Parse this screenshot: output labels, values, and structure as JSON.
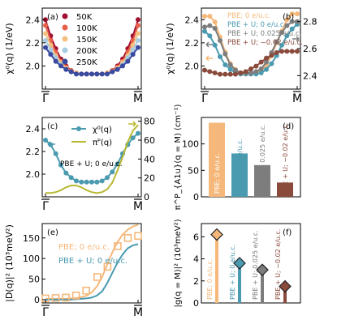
{
  "figure": {
    "common": {
      "x_ticks": [
        "Γ",
        "M"
      ]
    }
  },
  "chart_data": [
    {
      "panel": "(a)",
      "type": "line",
      "ylabel": "χ⁰(q) (1/eV)",
      "ylim": [
        1.8,
        2.5
      ],
      "yticks": [
        "2.0",
        "2.2",
        "2.4"
      ],
      "legend_position": "upper-left",
      "series": [
        {
          "name": "50K",
          "color": "#a01030",
          "values": [
            2.4,
            2.26,
            2.15,
            2.06,
            2.0,
            1.96,
            1.94,
            1.93,
            1.93,
            1.93,
            1.93,
            1.93,
            1.94,
            1.96,
            2.0,
            2.06,
            2.15,
            2.26,
            2.4
          ]
        },
        {
          "name": "100K",
          "color": "#e8604a",
          "values": [
            2.35,
            2.22,
            2.12,
            2.04,
            1.99,
            1.96,
            1.94,
            1.93,
            1.93,
            1.93,
            1.93,
            1.93,
            1.94,
            1.96,
            1.99,
            2.04,
            2.12,
            2.22,
            2.35
          ]
        },
        {
          "name": "150K",
          "color": "#f3c07f",
          "values": [
            2.28,
            2.18,
            2.09,
            2.03,
            1.98,
            1.95,
            1.94,
            1.93,
            1.93,
            1.93,
            1.93,
            1.93,
            1.94,
            1.95,
            1.98,
            2.03,
            2.09,
            2.18,
            2.28
          ]
        },
        {
          "name": "200K",
          "color": "#a8cce2",
          "values": [
            2.22,
            2.14,
            2.07,
            2.01,
            1.97,
            1.95,
            1.93,
            1.93,
            1.93,
            1.93,
            1.93,
            1.93,
            1.93,
            1.95,
            1.97,
            2.01,
            2.07,
            2.14,
            2.22
          ]
        },
        {
          "name": "250K",
          "color": "#3a4aa0",
          "values": [
            2.16,
            2.1,
            2.04,
            2.0,
            1.97,
            1.95,
            1.93,
            1.93,
            1.93,
            1.93,
            1.93,
            1.93,
            1.93,
            1.95,
            1.97,
            2.0,
            2.04,
            2.1,
            2.16
          ]
        }
      ]
    },
    {
      "panel": "(b)",
      "type": "line",
      "ylabel": "χ⁰(q) (1/eV)",
      "ylim_left": [
        1.8,
        2.5
      ],
      "yticks_left": [
        "2.0",
        "2.2",
        "2.4"
      ],
      "ylim_right": [
        2.3,
        2.9
      ],
      "yticks_right": [
        "2.4",
        "2.6",
        "2.8"
      ],
      "legend_position": "upper-left",
      "series": [
        {
          "name": "PBE;  0 e/u.c.",
          "color": "#f5b87a",
          "axis": "left",
          "values": [
            2.43,
            2.43,
            2.38,
            2.25,
            2.12,
            2.02,
            1.97,
            1.94,
            1.93,
            1.93,
            1.94,
            1.96,
            2.01,
            2.09,
            2.2,
            2.3,
            2.4,
            2.45,
            2.45
          ]
        },
        {
          "name": "PBE + U;  0 e/u.c.",
          "color": "#4a9ab0",
          "axis": "left",
          "values": [
            2.3,
            2.26,
            2.18,
            2.08,
            2.01,
            1.97,
            1.94,
            1.93,
            1.93,
            1.93,
            1.93,
            1.94,
            1.97,
            2.02,
            2.09,
            2.18,
            2.26,
            2.32,
            2.36
          ]
        },
        {
          "name": "PBE + U;  0.025 e/u.c.",
          "color": "#7d7d7d",
          "axis": "right",
          "values": [
            2.76,
            2.77,
            2.75,
            2.66,
            2.56,
            2.48,
            2.44,
            2.42,
            2.42,
            2.42,
            2.43,
            2.45,
            2.5,
            2.57,
            2.65,
            2.72,
            2.77,
            2.8,
            2.8
          ]
        },
        {
          "name": "PBE + U;  −0.02 e/u.c.",
          "color": "#8a4a3c",
          "axis": "right",
          "values": [
            2.44,
            2.43,
            2.42,
            2.41,
            2.41,
            2.41,
            2.41,
            2.42,
            2.43,
            2.45,
            2.47,
            2.5,
            2.53,
            2.55,
            2.57,
            2.58,
            2.58,
            2.58,
            2.58
          ]
        }
      ]
    },
    {
      "panel": "(c)",
      "type": "line",
      "ylim_left": [
        1.8,
        2.5
      ],
      "yticks_left": [
        "2.0",
        "2.2",
        "2.4"
      ],
      "ylim_right": [
        0,
        84
      ],
      "yticks_right": [
        "0",
        "20",
        "40",
        "60",
        "80"
      ],
      "annotation": "PBE + U;   0 e/u.c.",
      "legend_position": "upper-right",
      "series": [
        {
          "name": "χ⁰(q)",
          "color": "#4a9ab0",
          "axis": "left",
          "values": [
            2.3,
            2.26,
            2.18,
            2.08,
            2.01,
            1.97,
            1.94,
            1.93,
            1.93,
            1.93,
            1.93,
            1.94,
            1.97,
            2.02,
            2.09,
            2.18,
            2.26,
            2.32,
            2.36
          ]
        },
        {
          "name": "πᴾ(q)",
          "color": "#b8b832",
          "axis": "right",
          "values": [
            4,
            4,
            5,
            7,
            10,
            12,
            12,
            10,
            7,
            5,
            4,
            5,
            8,
            15,
            28,
            42,
            58,
            70,
            76
          ]
        }
      ]
    },
    {
      "panel": "(d)",
      "type": "bar",
      "ylabel": "π^P_{A1u}(q = M) (cm⁻¹)",
      "ylim": [
        0,
        150
      ],
      "yticks": [
        "0",
        "50",
        "100"
      ],
      "categories": [
        "PBE;   0 e/u.c.",
        "PBE + U;   0 e/u.c.",
        "PBE + U;   0.025 e/u.c.",
        "PBE + U;   −0.02 e/u.c."
      ],
      "colors": [
        "#f5b87a",
        "#4a9ab0",
        "#7d7d7d",
        "#8a4a3c"
      ],
      "values": [
        140,
        82,
        60,
        27
      ]
    },
    {
      "panel": "(e)",
      "type": "line",
      "ylabel": "|D(q)|² (10³meV²)",
      "ylim": [
        -8,
        185
      ],
      "yticks": [
        "0",
        "50",
        "100",
        "150"
      ],
      "legend_position": "upper-left",
      "series": [
        {
          "name": "PBE;   0 e/u.c.",
          "color": "#f5b87a",
          "values": [
            2,
            2,
            2,
            2,
            2,
            3,
            4,
            6,
            10,
            18,
            32,
            55,
            85,
            115,
            140,
            158,
            170,
            178,
            182
          ]
        },
        {
          "name": "PBE + U;   0 e/u.c.",
          "color": "#4a9ab0",
          "values": [
            0,
            0,
            0,
            0,
            0,
            0,
            1,
            2,
            3,
            5,
            10,
            20,
            40,
            65,
            90,
            110,
            125,
            132,
            135
          ]
        }
      ],
      "points": {
        "name": "squares",
        "color": "#f5b87a",
        "x": [
          0.0,
          0.11,
          0.22,
          0.33,
          0.44,
          0.56,
          0.67,
          0.78,
          0.89,
          1.0
        ],
        "y": [
          3,
          4,
          5,
          10,
          22,
          55,
          80,
          130,
          150,
          155
        ]
      }
    },
    {
      "panel": "(f)",
      "type": "stem",
      "ylabel": "|g(q = M)|² (10³meV²)",
      "ylim": [
        0,
        7.2
      ],
      "yticks": [
        "0",
        "2",
        "4",
        "6"
      ],
      "categories": [
        "PBE;   0 e/u.c.",
        "PBE + U;   0 e/u.c.",
        "PBE + U;   0.025 e/u.c.",
        "PBE + U;   −0.02 e/u.c."
      ],
      "colors": [
        "#f5b87a",
        "#4a9ab0",
        "#7d7d7d",
        "#8a4a3c"
      ],
      "values": [
        6.2,
        3.6,
        3.0,
        1.5
      ]
    }
  ]
}
